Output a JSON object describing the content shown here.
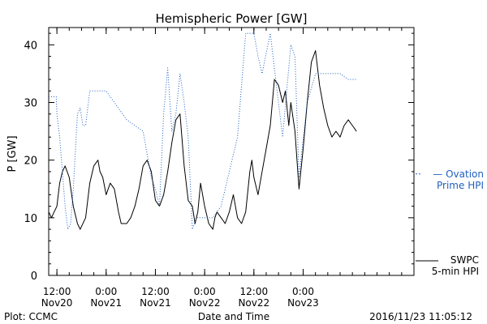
{
  "chart_data": {
    "type": "line",
    "title": "Hemispheric Power [GW]",
    "ylabel": "P [GW]",
    "xlabel": "Date and Time",
    "ylim": [
      0,
      43
    ],
    "xlim": [
      "2016-11-20 10:00",
      "2016-11-24 03:00"
    ],
    "yticks": [
      0,
      10,
      20,
      30,
      40
    ],
    "xticks": [
      {
        "top": "12:00",
        "bottom": "Nov20",
        "t": "2016-11-20 12:00"
      },
      {
        "top": "0:00",
        "bottom": "Nov21",
        "t": "2016-11-21 00:00"
      },
      {
        "top": "12:00",
        "bottom": "Nov21",
        "t": "2016-11-21 12:00"
      },
      {
        "top": "0:00",
        "bottom": "Nov22",
        "t": "2016-11-22 00:00"
      },
      {
        "top": "12:00",
        "bottom": "Nov22",
        "t": "2016-11-22 12:00"
      },
      {
        "top": "0:00",
        "bottom": "Nov23",
        "t": "2016-11-23 00:00"
      }
    ],
    "grid": false,
    "legend_position": "right",
    "series": [
      {
        "name": "SWPC 5-min HPI",
        "color": "#000000",
        "style": "solid",
        "x": [
          "2016-11-20 10:00",
          "2016-11-20 10:40",
          "2016-11-20 11:20",
          "2016-11-20 12:00",
          "2016-11-20 12:40",
          "2016-11-20 13:20",
          "2016-11-20 14:00",
          "2016-11-20 15:00",
          "2016-11-20 16:00",
          "2016-11-20 17:00",
          "2016-11-20 17:40",
          "2016-11-20 19:00",
          "2016-11-20 20:00",
          "2016-11-20 21:00",
          "2016-11-20 22:00",
          "2016-11-20 22:30",
          "2016-11-20 23:10",
          "2016-11-21 00:00",
          "2016-11-21 01:00",
          "2016-11-21 02:00",
          "2016-11-21 03:00",
          "2016-11-21 03:40",
          "2016-11-21 05:00",
          "2016-11-21 06:00",
          "2016-11-21 07:00",
          "2016-11-21 08:00",
          "2016-11-21 09:00",
          "2016-11-21 10:00",
          "2016-11-21 11:00",
          "2016-11-21 12:00",
          "2016-11-21 13:00",
          "2016-11-21 14:00",
          "2016-11-21 15:00",
          "2016-11-21 16:00",
          "2016-11-21 17:00",
          "2016-11-21 18:00",
          "2016-11-21 19:00",
          "2016-11-21 20:00",
          "2016-11-21 21:00",
          "2016-11-21 21:40",
          "2016-11-21 22:20",
          "2016-11-21 23:00",
          "2016-11-22 00:00",
          "2016-11-22 01:00",
          "2016-11-22 02:00",
          "2016-11-22 02:30",
          "2016-11-22 03:00",
          "2016-11-22 04:00",
          "2016-11-22 05:00",
          "2016-11-22 06:00",
          "2016-11-22 07:00",
          "2016-11-22 08:00",
          "2016-11-22 09:00",
          "2016-11-22 10:00",
          "2016-11-22 11:00",
          "2016-11-22 11:30",
          "2016-11-22 12:00",
          "2016-11-22 13:00",
          "2016-11-22 14:00",
          "2016-11-22 15:00",
          "2016-11-22 16:00",
          "2016-11-22 17:00",
          "2016-11-22 18:00",
          "2016-11-22 19:00",
          "2016-11-22 19:40",
          "2016-11-22 20:30",
          "2016-11-22 21:00",
          "2016-11-22 22:00",
          "2016-11-22 23:00",
          "2016-11-23 00:00",
          "2016-11-23 01:00",
          "2016-11-23 02:00",
          "2016-11-23 03:00",
          "2016-11-23 04:00",
          "2016-11-23 05:00",
          "2016-11-23 06:00",
          "2016-11-23 07:00",
          "2016-11-23 08:00",
          "2016-11-23 09:00",
          "2016-11-23 10:00",
          "2016-11-23 11:00",
          "2016-11-23 12:00",
          "2016-11-23 13:00"
        ],
        "values": [
          11,
          10,
          11,
          12,
          16,
          18,
          19,
          17,
          12,
          9,
          8,
          10,
          16,
          19,
          20,
          18,
          17,
          14,
          16,
          15,
          11,
          9,
          9,
          10,
          12,
          15,
          19,
          20,
          18,
          13,
          12,
          14,
          18,
          23,
          27,
          28,
          19,
          13,
          12,
          9,
          11,
          16,
          12,
          9,
          8,
          10,
          11,
          10,
          9,
          11,
          14,
          10,
          9,
          11,
          18,
          20,
          17,
          14,
          18,
          22,
          26,
          34,
          33,
          30,
          32,
          26,
          30,
          25,
          15,
          22,
          30,
          37,
          39,
          33,
          29,
          26,
          24,
          25,
          24,
          26,
          27,
          26,
          25
        ]
      },
      {
        "name": "Ovation Prime HPI",
        "color": "#2060c0",
        "style": "dotted",
        "x": [
          "2016-11-20 10:00",
          "2016-11-20 11:50",
          "2016-11-20 12:00",
          "2016-11-20 12:40",
          "2016-11-20 13:20",
          "2016-11-20 14:00",
          "2016-11-20 14:40",
          "2016-11-20 15:20",
          "2016-11-20 16:00",
          "2016-11-20 17:00",
          "2016-11-20 17:40",
          "2016-11-20 18:20",
          "2016-11-20 19:00",
          "2016-11-20 20:00",
          "2016-11-20 21:00",
          "2016-11-20 22:00",
          "2016-11-21 00:00",
          "2016-11-21 01:00",
          "2016-11-21 03:00",
          "2016-11-21 05:00",
          "2016-11-21 07:00",
          "2016-11-21 09:00",
          "2016-11-21 11:00",
          "2016-11-21 12:00",
          "2016-11-21 13:00",
          "2016-11-21 14:00",
          "2016-11-21 15:00",
          "2016-11-21 16:00",
          "2016-11-21 17:00",
          "2016-11-21 18:00",
          "2016-11-21 19:00",
          "2016-11-21 20:00",
          "2016-11-21 21:00",
          "2016-11-21 22:00",
          "2016-11-22 00:00",
          "2016-11-22 02:00",
          "2016-11-22 04:00",
          "2016-11-22 06:00",
          "2016-11-22 08:00",
          "2016-11-22 10:00",
          "2016-11-22 12:00",
          "2016-11-22 13:00",
          "2016-11-22 14:00",
          "2016-11-22 16:00",
          "2016-11-22 18:00",
          "2016-11-22 19:00",
          "2016-11-22 21:00",
          "2016-11-22 22:00",
          "2016-11-22 23:00",
          "2016-11-23 01:00",
          "2016-11-23 03:00",
          "2016-11-23 05:00",
          "2016-11-23 07:00",
          "2016-11-23 09:00",
          "2016-11-23 11:00",
          "2016-11-23 13:00"
        ],
        "values": [
          31,
          31,
          28,
          24,
          18,
          12,
          8,
          9,
          15,
          28,
          29,
          26,
          26,
          32,
          32,
          32,
          32,
          31,
          29,
          27,
          26,
          25,
          17,
          15,
          12,
          28,
          36,
          25,
          28,
          35,
          30,
          24,
          8,
          10,
          10,
          10,
          12,
          18,
          24,
          42,
          42,
          38,
          35,
          42,
          30,
          24,
          40,
          38,
          17,
          30,
          35,
          35,
          35,
          35,
          34,
          34
        ]
      }
    ]
  },
  "legend": {
    "ovation_line1": "— Ovation",
    "ovation_line2": "Prime HPI",
    "swpc_line1": "SWPC",
    "swpc_line2": "5-min HPI"
  },
  "footer": {
    "left": "Plot: CCMC",
    "right": "2016/11/23 11:05:12"
  },
  "colors": {
    "swpc": "#000000",
    "ovation": "#2060c0"
  }
}
